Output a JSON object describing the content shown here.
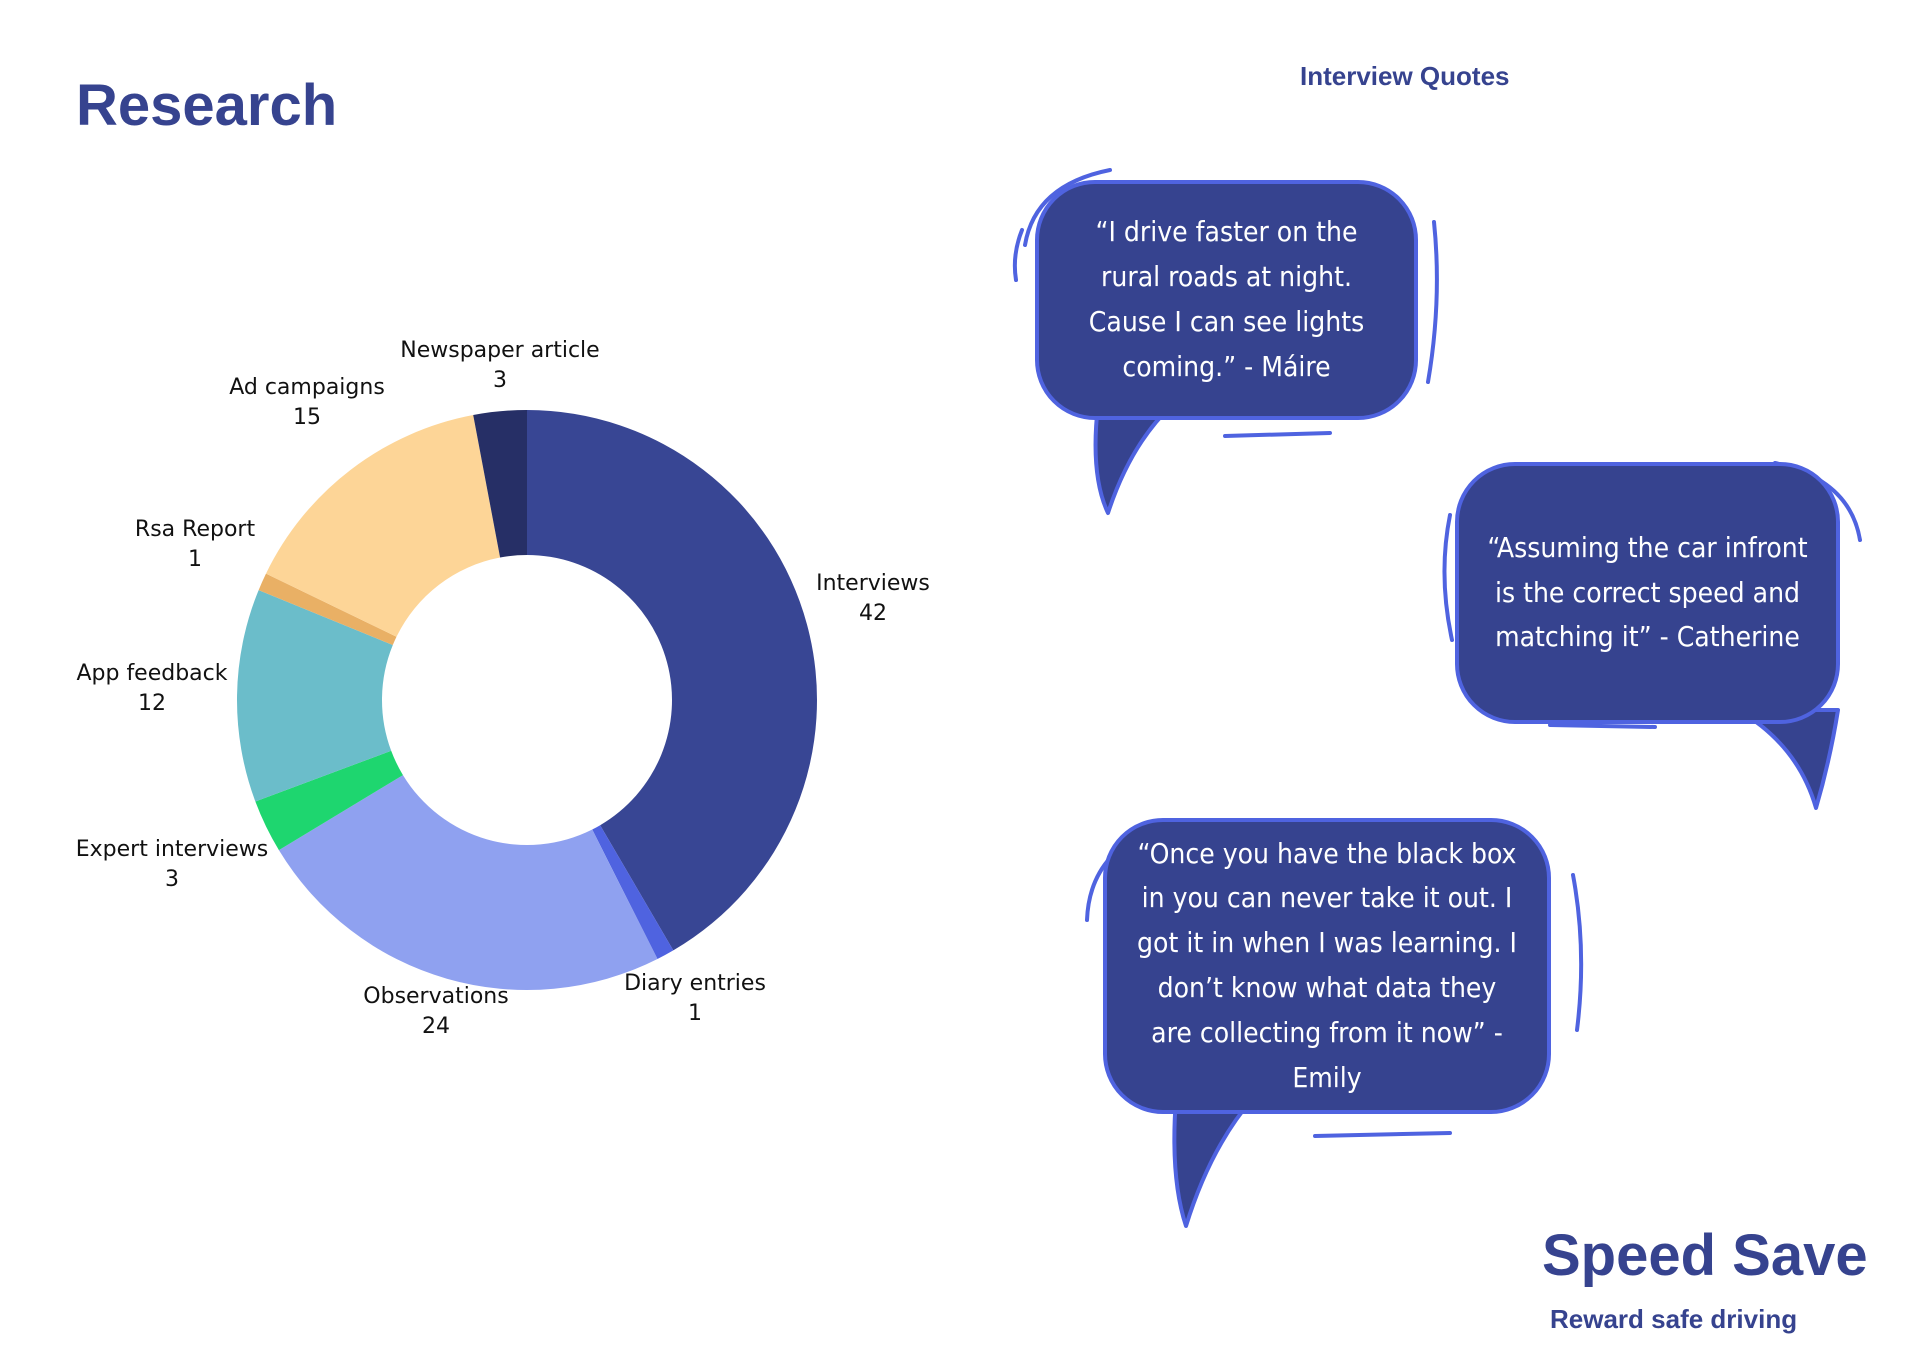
{
  "page": {
    "title": "Research",
    "quotes_heading": "Interview Quotes"
  },
  "chart_data": {
    "type": "pie",
    "donut": true,
    "categories": [
      "Interviews",
      "Diary entries",
      "Observations",
      "Expert interviews",
      "App feedback",
      "Rsa Report",
      "Ad campaigns",
      "Newspaper article"
    ],
    "values": [
      42,
      1,
      24,
      3,
      12,
      1,
      15,
      3
    ],
    "colors": [
      "#384694",
      "#4f63e0",
      "#8fa1f0",
      "#1ed66f",
      "#6bbdca",
      "#e9b065",
      "#fdd597",
      "#262f66"
    ],
    "data_labels": [
      {
        "name": "Interviews",
        "value": "42"
      },
      {
        "name": "Diary entries",
        "value": "1"
      },
      {
        "name": "Observations",
        "value": "24"
      },
      {
        "name": "Expert interviews",
        "value": "3"
      },
      {
        "name": "App feedback",
        "value": "12"
      },
      {
        "name": "Rsa Report",
        "value": "1"
      },
      {
        "name": "Ad campaigns",
        "value": "15"
      },
      {
        "name": "Newspaper article",
        "value": "3"
      }
    ]
  },
  "quotes": [
    {
      "text": "“I drive faster on the rural roads at night. Cause I can see lights coming.” - Máire"
    },
    {
      "text": "“Assuming the car infront is the correct speed and matching it” - Catherine"
    },
    {
      "text": "“Once you have the black box in you can never take it out. I got it in when I was learning. I don’t know what data they are collecting from it now” - Emily"
    }
  ],
  "brand": {
    "name": "Speed Save",
    "tagline": "Reward safe driving"
  },
  "colors": {
    "primary": "#36438f",
    "bubble_outline": "#4f63e0"
  }
}
